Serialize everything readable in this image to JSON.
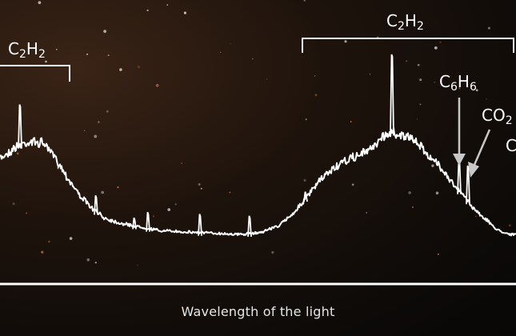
{
  "chart_data": {
    "type": "line",
    "title": "",
    "xlabel": "Wavelength of the light",
    "ylabel": "",
    "grid": false,
    "legend": "none",
    "axis_ticks": false,
    "series": [
      {
        "name": "",
        "color": "#ffffff",
        "noisy": true,
        "x": [
          0,
          10,
          20,
          30,
          40,
          55,
          70,
          85,
          100,
          115,
          130,
          150,
          175,
          200,
          225,
          250,
          275,
          300,
          325,
          350,
          370,
          385,
          400,
          415,
          430,
          445,
          460,
          470,
          480,
          490,
          500,
          510,
          520,
          530,
          540,
          550,
          560,
          570,
          580,
          590,
          600,
          610,
          620,
          630,
          640,
          645
        ],
        "y": [
          0.44,
          0.47,
          0.5,
          0.52,
          0.53,
          0.52,
          0.44,
          0.33,
          0.24,
          0.17,
          0.12,
          0.09,
          0.07,
          0.05,
          0.045,
          0.04,
          0.035,
          0.03,
          0.04,
          0.08,
          0.16,
          0.24,
          0.32,
          0.38,
          0.42,
          0.45,
          0.48,
          0.52,
          0.56,
          0.58,
          0.57,
          0.55,
          0.53,
          0.49,
          0.43,
          0.4,
          0.34,
          0.28,
          0.24,
          0.18,
          0.14,
          0.1,
          0.06,
          0.04,
          0.03,
          0.03
        ]
      }
    ],
    "spikes": [
      {
        "x": 25,
        "y": 0.73
      },
      {
        "x": 120,
        "y": 0.24
      },
      {
        "x": 168,
        "y": 0.12
      },
      {
        "x": 185,
        "y": 0.15
      },
      {
        "x": 250,
        "y": 0.14
      },
      {
        "x": 312,
        "y": 0.13
      },
      {
        "x": 382,
        "y": 0.26
      },
      {
        "x": 490,
        "y": 1.0
      },
      {
        "x": 574,
        "y": 0.43
      },
      {
        "x": 585,
        "y": 0.4
      }
    ],
    "annotations": [
      {
        "type": "bracket",
        "label_parts": [
          "C",
          "2",
          "H",
          "2"
        ],
        "x_start": 0,
        "x_end": 87
      },
      {
        "type": "bracket",
        "label_parts": [
          "C",
          "2",
          "H",
          "2"
        ],
        "x_start": 378,
        "x_end": 642
      },
      {
        "type": "arrow",
        "label_parts": [
          "C",
          "6",
          "H",
          "6"
        ],
        "target_x": 574
      },
      {
        "type": "arrow",
        "label_parts": [
          "CO",
          "2"
        ],
        "target_x": 585
      },
      {
        "type": "arrow",
        "label_parts": [
          "C"
        ],
        "target_x": 585
      }
    ]
  }
}
